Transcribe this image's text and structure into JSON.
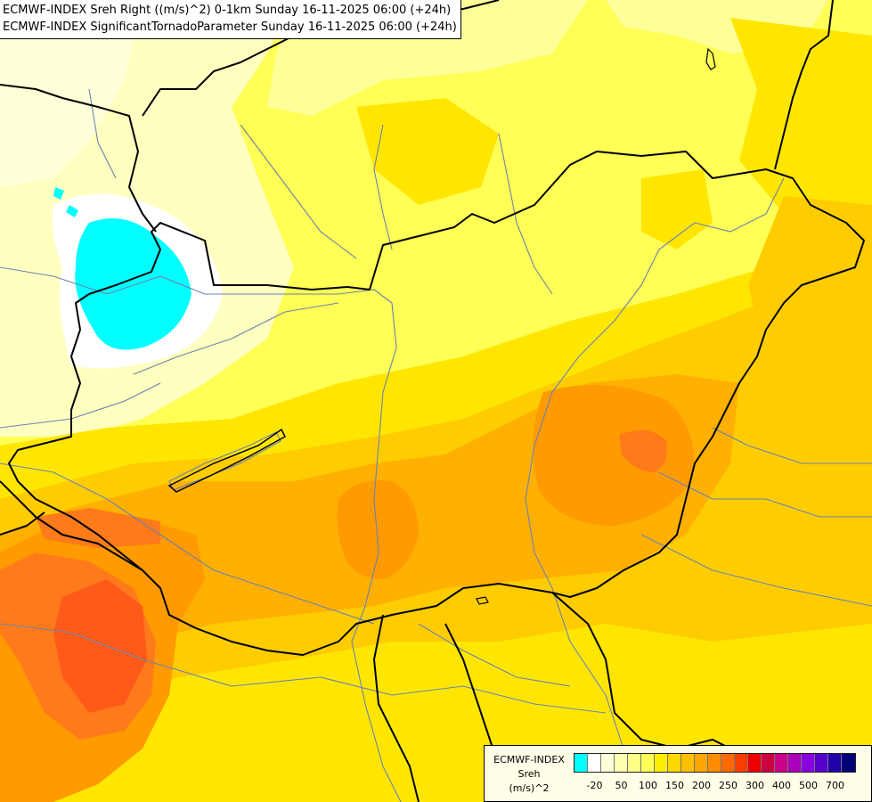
{
  "titles": {
    "line1": "ECMWF-INDEX Sreh Right ((m/s)^2) 0-1km Sunday 16-11-2025 06:00 (+24h)",
    "line2": "ECMWF-INDEX SignificantTornadoParameter Sunday 16-11-2025 06:00 (+24h)"
  },
  "legend": {
    "model": "ECMWF-INDEX",
    "param": "Sreh",
    "unit": "(m/s)^2",
    "colors": [
      "#00ffff",
      "#ffffff",
      "#ffffd8",
      "#ffffb0",
      "#ffff88",
      "#ffff55",
      "#ffee00",
      "#ffd700",
      "#ffc000",
      "#ffa500",
      "#ff8c00",
      "#ff6a00",
      "#ff3c00",
      "#ee0000",
      "#cc0040",
      "#cc0088",
      "#aa00bb",
      "#8800dd",
      "#5500cc",
      "#2200aa",
      "#000077"
    ],
    "ticks": [
      {
        "label": "-20",
        "index": 1
      },
      {
        "label": "50",
        "index": 3
      },
      {
        "label": "100",
        "index": 5
      },
      {
        "label": "150",
        "index": 7
      },
      {
        "label": "200",
        "index": 9
      },
      {
        "label": "250",
        "index": 11
      },
      {
        "label": "300",
        "index": 13
      },
      {
        "label": "400",
        "index": 15
      },
      {
        "label": "500",
        "index": 17
      },
      {
        "label": "700",
        "index": 19
      }
    ]
  },
  "field_colors": {
    "cyan": "#00ffff",
    "white": "#ffffff",
    "pale_cream": "#ffffc0",
    "pale_yellow": "#ffff99",
    "yellow": "#ffff55",
    "gold": "#ffe600",
    "amber": "#ffcc00",
    "orange_light": "#ffb000",
    "orange": "#ff9a00",
    "orange_dark": "#ff7a1a",
    "red_orange": "#ff5a1a"
  }
}
